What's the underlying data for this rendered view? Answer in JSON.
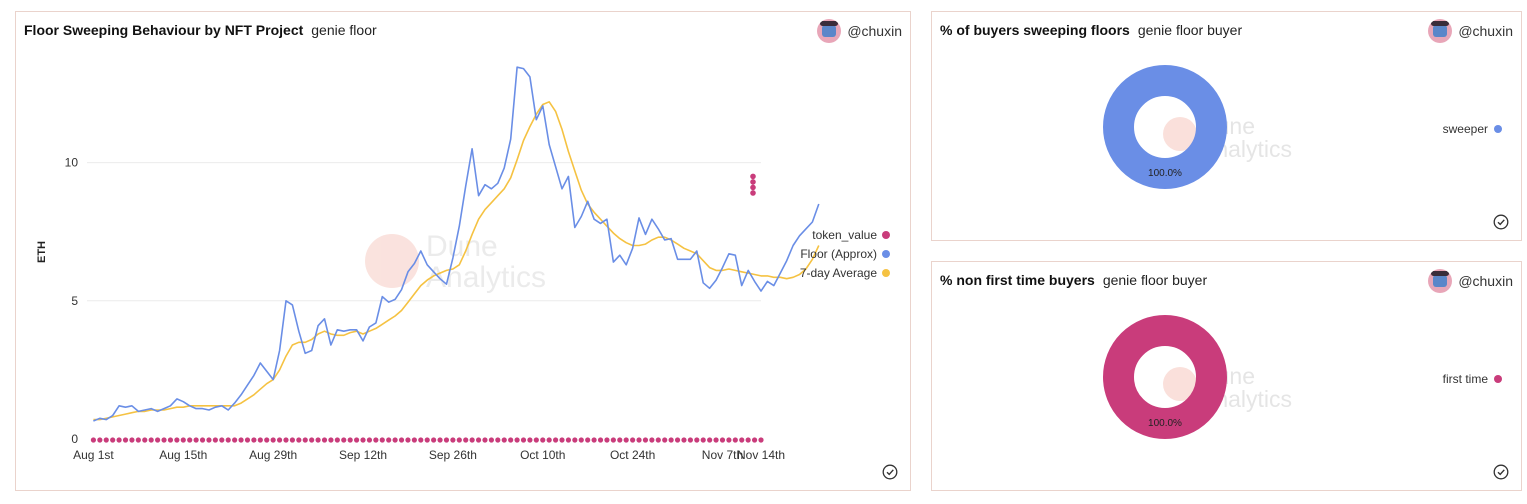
{
  "main": {
    "title": "Floor Sweeping Behaviour by NFT Project",
    "subtitle": "genie floor",
    "author": "@chuxin",
    "watermark": [
      "Dune",
      "Analytics"
    ]
  },
  "sweep_card": {
    "title": "% of buyers sweeping floors",
    "subtitle": "genie floor buyer",
    "author": "@chuxin",
    "watermark": [
      "Dune",
      "Analytics"
    ]
  },
  "nonfirst_card": {
    "title": "% non first time buyers",
    "subtitle": "genie floor buyer",
    "author": "@chuxin",
    "watermark": [
      "Dune",
      "Analytics"
    ]
  },
  "icons": {
    "author_avatar": "avatar-icon",
    "status": "check-circle-icon"
  },
  "colors": {
    "token_value": "#c93c7b",
    "floor": "#6a8ee6",
    "avg7": "#f5c242",
    "card_border": "#ead3cc"
  },
  "chart_data": [
    {
      "type": "line",
      "title": "Floor Sweeping Behaviour by NFT Project",
      "subtitle": "genie floor",
      "xlabel": "",
      "ylabel": "ETH",
      "ylim": [
        0,
        14
      ],
      "yticks": [
        0,
        5,
        10
      ],
      "grid": true,
      "legend_position": "right",
      "x_start": "2022-07-31",
      "xticks": [
        "Aug 1st",
        "Aug 15th",
        "Aug 29th",
        "Sep 12th",
        "Sep 26th",
        "Oct 10th",
        "Oct 24th",
        "Nov 7th",
        "Nov 14th"
      ],
      "series": [
        {
          "name": "token_value",
          "kind": "scatter",
          "color": "#c93c7b",
          "note_values": "0 on every day; four extra points on the last day",
          "last_day_points": [
            9.5,
            9.3,
            9.1,
            8.9
          ]
        },
        {
          "name": "Floor (Approx)",
          "kind": "line",
          "color": "#6a8ee6",
          "values": [
            0.65,
            0.75,
            0.7,
            0.85,
            1.2,
            1.15,
            1.2,
            1.0,
            1.05,
            1.1,
            1.0,
            1.1,
            1.2,
            1.45,
            1.35,
            1.2,
            1.1,
            1.1,
            1.05,
            1.15,
            1.2,
            1.05,
            1.3,
            1.6,
            1.95,
            2.3,
            2.75,
            2.45,
            2.15,
            3.2,
            5.0,
            4.85,
            3.9,
            3.1,
            3.2,
            4.1,
            4.35,
            3.4,
            3.95,
            3.9,
            3.95,
            3.95,
            3.55,
            4.05,
            4.2,
            5.15,
            4.95,
            5.05,
            5.4,
            6.05,
            6.35,
            6.8,
            6.3,
            6.05,
            5.8,
            5.6,
            6.55,
            7.7,
            9.15,
            10.5,
            8.8,
            9.2,
            9.05,
            9.25,
            9.8,
            10.85,
            13.45,
            13.4,
            13.1,
            11.55,
            12.05,
            10.65,
            9.85,
            9.05,
            9.5,
            7.65,
            8.05,
            8.6,
            7.95,
            7.8,
            7.95,
            6.4,
            6.65,
            6.3,
            6.9,
            8.0,
            7.4,
            7.95,
            7.6,
            7.2,
            7.25,
            6.5,
            6.5,
            6.5,
            6.8,
            5.65,
            5.45,
            5.75,
            6.2,
            6.7,
            6.65,
            5.55,
            6.1,
            5.7,
            5.35,
            5.7,
            5.55,
            6.0,
            6.45,
            7.0,
            7.35,
            7.6,
            7.85,
            8.5
          ]
        },
        {
          "name": "7-day Average",
          "kind": "line",
          "color": "#f5c242",
          "values": [
            0.7,
            0.7,
            0.75,
            0.8,
            0.85,
            0.9,
            0.95,
            1.0,
            1.0,
            1.05,
            1.05,
            1.05,
            1.1,
            1.15,
            1.15,
            1.2,
            1.2,
            1.2,
            1.2,
            1.2,
            1.2,
            1.2,
            1.2,
            1.3,
            1.45,
            1.6,
            1.8,
            2.0,
            2.15,
            2.5,
            3.0,
            3.4,
            3.5,
            3.5,
            3.6,
            3.8,
            3.9,
            3.8,
            3.75,
            3.75,
            3.85,
            3.9,
            3.8,
            3.9,
            4.0,
            4.15,
            4.3,
            4.45,
            4.65,
            4.95,
            5.25,
            5.55,
            5.75,
            5.9,
            6.0,
            6.1,
            6.15,
            6.3,
            6.8,
            7.4,
            7.95,
            8.3,
            8.55,
            8.8,
            9.05,
            9.45,
            10.1,
            10.8,
            11.3,
            11.75,
            12.1,
            12.2,
            11.85,
            11.2,
            10.4,
            9.7,
            9.0,
            8.5,
            8.2,
            7.95,
            7.7,
            7.45,
            7.25,
            7.1,
            7.0,
            7.0,
            7.05,
            7.2,
            7.3,
            7.3,
            7.2,
            7.05,
            6.9,
            6.8,
            6.7,
            6.45,
            6.2,
            6.1,
            6.1,
            6.15,
            6.1,
            6.05,
            6.0,
            5.95,
            5.9,
            5.9,
            5.85,
            5.85,
            5.8,
            5.85,
            5.95,
            6.15,
            6.5,
            7.0
          ]
        }
      ]
    },
    {
      "type": "pie",
      "title": "% of buyers sweeping floors",
      "subtitle": "genie floor buyer",
      "donut": true,
      "legend_position": "right",
      "slices": [
        {
          "label": "sweeper",
          "value": 100.0,
          "display": "100.0%",
          "color": "#6a8ee6"
        }
      ]
    },
    {
      "type": "pie",
      "title": "% non first time buyers",
      "subtitle": "genie floor buyer",
      "donut": true,
      "legend_position": "right",
      "slices": [
        {
          "label": "first time",
          "value": 100.0,
          "display": "100.0%",
          "color": "#c93c7b"
        }
      ]
    }
  ]
}
